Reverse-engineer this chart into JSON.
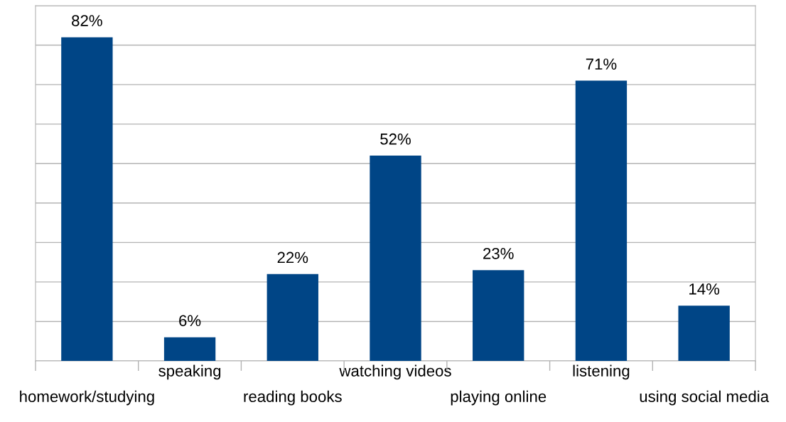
{
  "chart_data": {
    "type": "bar",
    "categories": [
      "homework/studying",
      "speaking",
      "reading books",
      "watching videos",
      "playing online",
      "listening",
      "using social media"
    ],
    "values": [
      82,
      6,
      22,
      52,
      23,
      71,
      14
    ],
    "value_labels": [
      "82%",
      "6%",
      "22%",
      "52%",
      "23%",
      "71%",
      "14%"
    ],
    "color": "#004586",
    "ylim": [
      0,
      90
    ],
    "yticks": [
      {
        "value": 0,
        "label": null
      },
      {
        "value": 10,
        "label": null
      },
      {
        "value": 20,
        "label": null
      },
      {
        "value": 30,
        "label": null
      },
      {
        "value": 40,
        "label": null
      },
      {
        "value": 50,
        "label": null
      },
      {
        "value": 60,
        "label": null
      },
      {
        "value": 70,
        "label": null
      },
      {
        "value": 80,
        "label": null
      },
      {
        "value": 90,
        "label": null
      }
    ],
    "grid": "y",
    "tick_labels": "x"
  }
}
